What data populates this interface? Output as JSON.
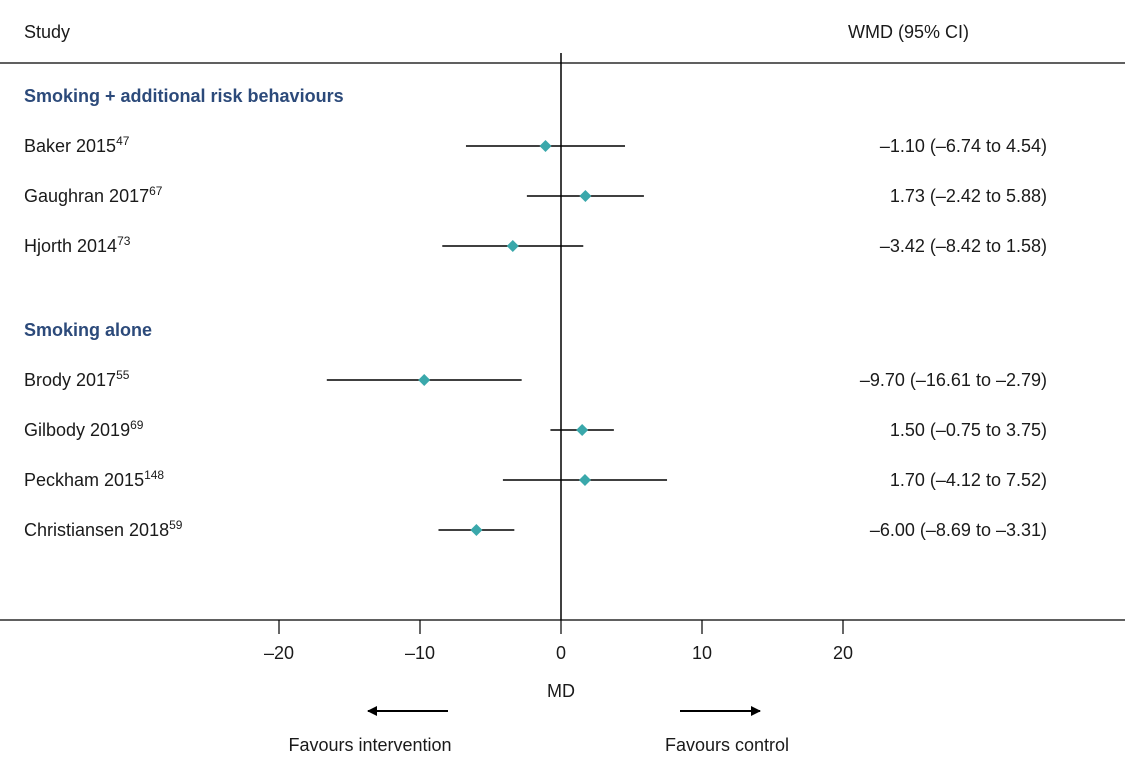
{
  "header": {
    "study_label": "Study",
    "effect_label": "WMD (95% CI)"
  },
  "colors": {
    "marker": "#3aa8ab",
    "group_heading": "#2c4a7a",
    "line": "#000000"
  },
  "chart_data": {
    "type": "forest",
    "xlabel": "MD",
    "xlim": [
      -20,
      20
    ],
    "x_ticks": [
      -20,
      -10,
      0,
      10,
      20
    ],
    "x_tick_labels": [
      "–20",
      "–10",
      "0",
      "10",
      "20"
    ],
    "null_line": 0,
    "favours_left": "Favours intervention",
    "favours_right": "Favours control",
    "groups": [
      {
        "name": "Smoking + additional risk behaviours",
        "studies": [
          {
            "study": "Baker 2015",
            "ref": "47",
            "estimate": -1.1,
            "lower": -6.74,
            "upper": 4.54,
            "label": "–1.10 (–6.74 to 4.54)"
          },
          {
            "study": "Gaughran 2017",
            "ref": "67",
            "estimate": 1.73,
            "lower": -2.42,
            "upper": 5.88,
            "label": "1.73 (–2.42 to 5.88)"
          },
          {
            "study": "Hjorth 2014",
            "ref": "73",
            "estimate": -3.42,
            "lower": -8.42,
            "upper": 1.58,
            "label": "–3.42 (–8.42 to 1.58)"
          }
        ]
      },
      {
        "name": "Smoking alone",
        "studies": [
          {
            "study": "Brody 2017",
            "ref": "55",
            "estimate": -9.7,
            "lower": -16.61,
            "upper": -2.79,
            "label": "–9.70 (–16.61 to –2.79)"
          },
          {
            "study": "Gilbody 2019",
            "ref": "69",
            "estimate": 1.5,
            "lower": -0.75,
            "upper": 3.75,
            "label": "1.50 (–0.75 to 3.75)"
          },
          {
            "study": "Peckham 2015",
            "ref": "148",
            "estimate": 1.7,
            "lower": -4.12,
            "upper": 7.52,
            "label": "1.70 (–4.12 to 7.52)"
          },
          {
            "study": "Christiansen 2018",
            "ref": "59",
            "estimate": -6.0,
            "lower": -8.69,
            "upper": -3.31,
            "label": "–6.00 (–8.69 to –3.31)"
          }
        ]
      }
    ]
  }
}
